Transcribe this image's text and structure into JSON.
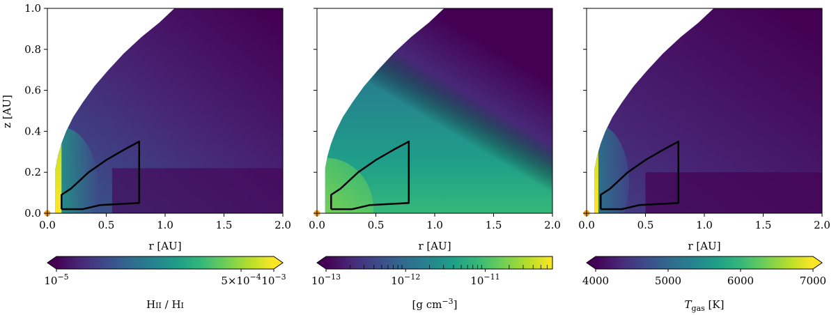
{
  "chart_data": [
    {
      "type": "heatmap",
      "panel": "HII-HI-ratio",
      "xlabel": "r [AU]",
      "ylabel": "z [AU]",
      "xlim": [
        0.0,
        2.0
      ],
      "ylim": [
        0.0,
        1.0
      ],
      "xticks": [
        "0.0",
        "0.5",
        "1.0",
        "1.5",
        "2.0"
      ],
      "yticks": [
        "0.0",
        "0.2",
        "0.4",
        "0.6",
        "0.8",
        "1.0"
      ],
      "contour_region": [
        [
          0.12,
          0.02
        ],
        [
          0.12,
          0.09
        ],
        [
          0.2,
          0.12
        ],
        [
          0.35,
          0.2
        ],
        [
          0.5,
          0.26
        ],
        [
          0.65,
          0.31
        ],
        [
          0.78,
          0.35
        ],
        [
          0.78,
          0.05
        ],
        [
          0.45,
          0.04
        ],
        [
          0.3,
          0.02
        ],
        [
          0.12,
          0.02
        ]
      ],
      "colorbar": {
        "label_main": "H",
        "label_num_sc": "II",
        "label_mid": " / H",
        "label_den_sc": "I",
        "scale": "log",
        "range": [
          1e-05,
          0.001
        ],
        "tick_values": [
          1e-05,
          0.0005,
          0.001
        ],
        "ticks": [
          {
            "mant": "10",
            "sup": "−5"
          },
          {
            "mant": "5×10",
            "sup": "−4"
          },
          {
            "mant": "10",
            "sup": "−3"
          }
        ],
        "extend": "both",
        "colormap": "viridis"
      }
    },
    {
      "type": "heatmap",
      "panel": "density",
      "xlabel": "r [AU]",
      "xlim": [
        0.0,
        2.0
      ],
      "ylim": [
        0.0,
        1.0
      ],
      "xticks": [
        "0.0",
        "0.5",
        "1.0",
        "1.5",
        "2.0"
      ],
      "contour_region": [
        [
          0.12,
          0.02
        ],
        [
          0.12,
          0.09
        ],
        [
          0.2,
          0.12
        ],
        [
          0.35,
          0.2
        ],
        [
          0.5,
          0.26
        ],
        [
          0.65,
          0.31
        ],
        [
          0.78,
          0.35
        ],
        [
          0.78,
          0.05
        ],
        [
          0.45,
          0.04
        ],
        [
          0.3,
          0.02
        ],
        [
          0.12,
          0.02
        ]
      ],
      "colorbar": {
        "label_main": "[g cm",
        "label_sup": "−3",
        "label_end": "]",
        "scale": "log",
        "range": [
          1e-13,
          7e-11
        ],
        "tick_values": [
          1e-13,
          1e-12,
          1e-11
        ],
        "ticks": [
          {
            "mant": "10",
            "sup": "−13"
          },
          {
            "mant": "10",
            "sup": "−12"
          },
          {
            "mant": "10",
            "sup": "−11"
          }
        ],
        "extend": "min",
        "colormap": "viridis"
      }
    },
    {
      "type": "heatmap",
      "panel": "gas-temperature",
      "xlabel": "r [AU]",
      "xlim": [
        0.0,
        2.0
      ],
      "ylim": [
        0.0,
        1.0
      ],
      "xticks": [
        "0.0",
        "0.5",
        "1.0",
        "1.5",
        "2.0"
      ],
      "contour_region": [
        [
          0.12,
          0.02
        ],
        [
          0.12,
          0.09
        ],
        [
          0.2,
          0.12
        ],
        [
          0.35,
          0.2
        ],
        [
          0.5,
          0.26
        ],
        [
          0.65,
          0.31
        ],
        [
          0.78,
          0.35
        ],
        [
          0.78,
          0.05
        ],
        [
          0.45,
          0.04
        ],
        [
          0.3,
          0.02
        ],
        [
          0.12,
          0.02
        ]
      ],
      "colorbar": {
        "label_main": "T",
        "label_sub": "gas",
        "label_end": " [K]",
        "scale": "linear",
        "range": [
          4000,
          7000
        ],
        "tick_values": [
          4000,
          5000,
          6000,
          7000
        ],
        "ticks": [
          {
            "mant": "4000",
            "sup": ""
          },
          {
            "mant": "5000",
            "sup": ""
          },
          {
            "mant": "6000",
            "sup": ""
          },
          {
            "mant": "7000",
            "sup": ""
          }
        ],
        "extend": "both",
        "colormap": "viridis"
      }
    }
  ],
  "colors": {
    "viridis": [
      "#440154",
      "#482878",
      "#3e4989",
      "#31688e",
      "#26828e",
      "#1f9e89",
      "#35b779",
      "#6ece58",
      "#b5de2b",
      "#fde725"
    ],
    "star": "#f5a020",
    "contour": "#000000",
    "background": "#ffffff"
  }
}
